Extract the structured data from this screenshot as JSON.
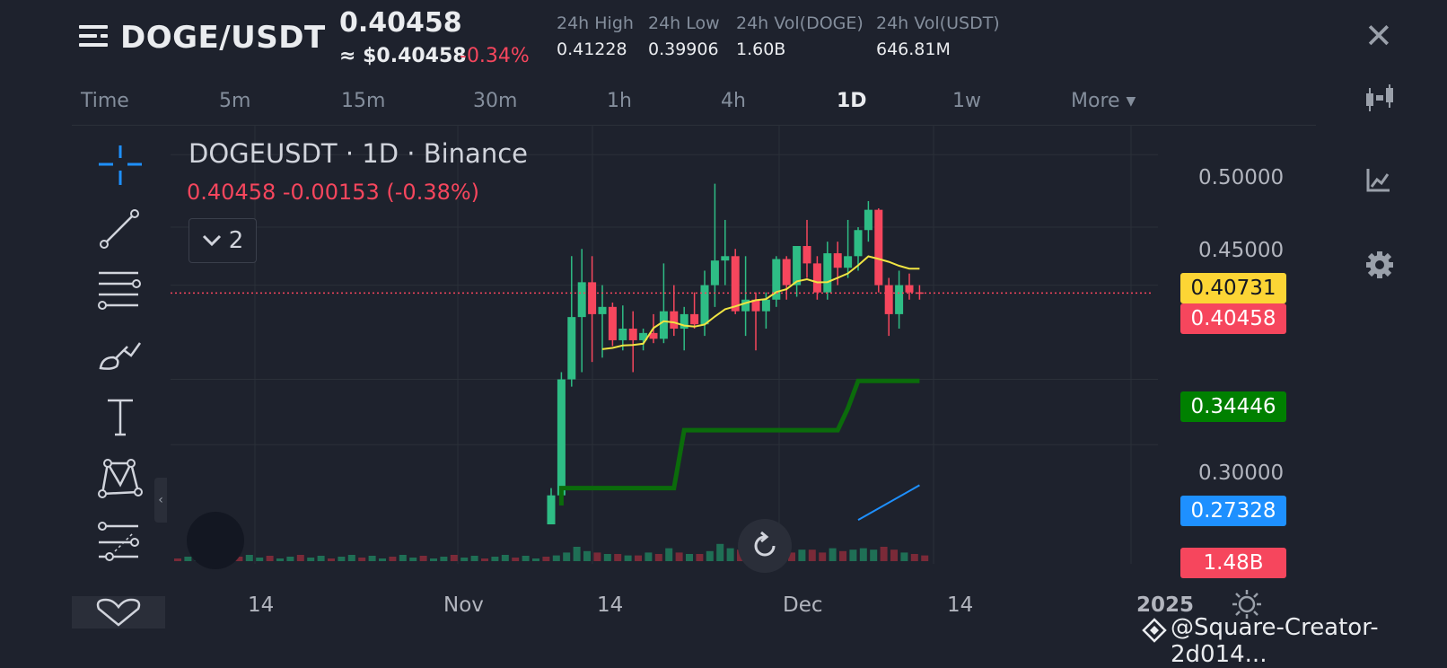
{
  "header": {
    "symbol": "DOGE/USDT",
    "price": "0.40458",
    "price_usd": "≈ $0.40458",
    "change_pct": "-0.34%",
    "stats": [
      {
        "label": "24h High",
        "value": "0.41228"
      },
      {
        "label": "24h Low",
        "value": "0.39906"
      },
      {
        "label": "24h Vol(DOGE)",
        "value": "1.60B"
      },
      {
        "label": "24h Vol(USDT)",
        "value": "646.81M"
      }
    ]
  },
  "timeframes": [
    "Time",
    "5m",
    "15m",
    "30m",
    "1h",
    "4h",
    "1D",
    "1w",
    "More"
  ],
  "active_timeframe": "1D",
  "chart": {
    "title": "DOGEUSDT · 1D · Binance",
    "ohlc_summary": "0.40458  -0.00153 (-0.38%)",
    "indicator_count": "2"
  },
  "price_tags": {
    "ma_yellow": "0.40731",
    "last_price": "0.40458",
    "ma_green": "0.34446",
    "ma_blue": "0.27328",
    "volume": "1.48B"
  },
  "watermark": "@Square-Creator-2d014...",
  "colors": {
    "up": "#2ebd85",
    "down": "#f6465d",
    "ma_yellow": "#f0e442",
    "ma_green": "#0b6b0b",
    "ma_blue": "#1e90ff",
    "tag_yellow": "#fcd535",
    "tag_green": "#008000",
    "tag_blue": "#1e90ff"
  },
  "chart_data": {
    "type": "candlestick",
    "yaxis_ticks": [
      "0.50000",
      "0.45000",
      "0.30000"
    ],
    "xaxis_ticks": [
      "14",
      "Nov",
      "14",
      "Dec",
      "14",
      "2025"
    ],
    "ylim": [
      0.245,
      0.52
    ],
    "candles": [
      {
        "o": 0.245,
        "h": 0.27,
        "l": 0.245,
        "c": 0.265
      },
      {
        "o": 0.265,
        "h": 0.35,
        "l": 0.258,
        "c": 0.345
      },
      {
        "o": 0.345,
        "h": 0.43,
        "l": 0.34,
        "c": 0.388
      },
      {
        "o": 0.388,
        "h": 0.435,
        "l": 0.35,
        "c": 0.412
      },
      {
        "o": 0.412,
        "h": 0.43,
        "l": 0.357,
        "c": 0.39
      },
      {
        "o": 0.39,
        "h": 0.41,
        "l": 0.36,
        "c": 0.395
      },
      {
        "o": 0.395,
        "h": 0.398,
        "l": 0.368,
        "c": 0.372
      },
      {
        "o": 0.372,
        "h": 0.396,
        "l": 0.365,
        "c": 0.38
      },
      {
        "o": 0.38,
        "h": 0.392,
        "l": 0.35,
        "c": 0.372
      },
      {
        "o": 0.372,
        "h": 0.38,
        "l": 0.365,
        "c": 0.377
      },
      {
        "o": 0.377,
        "h": 0.39,
        "l": 0.37,
        "c": 0.373
      },
      {
        "o": 0.373,
        "h": 0.425,
        "l": 0.37,
        "c": 0.392
      },
      {
        "o": 0.392,
        "h": 0.41,
        "l": 0.375,
        "c": 0.38
      },
      {
        "o": 0.38,
        "h": 0.395,
        "l": 0.365,
        "c": 0.39
      },
      {
        "o": 0.39,
        "h": 0.405,
        "l": 0.38,
        "c": 0.383
      },
      {
        "o": 0.383,
        "h": 0.42,
        "l": 0.375,
        "c": 0.41
      },
      {
        "o": 0.41,
        "h": 0.48,
        "l": 0.395,
        "c": 0.427
      },
      {
        "o": 0.427,
        "h": 0.455,
        "l": 0.41,
        "c": 0.43
      },
      {
        "o": 0.43,
        "h": 0.435,
        "l": 0.39,
        "c": 0.392
      },
      {
        "o": 0.392,
        "h": 0.43,
        "l": 0.375,
        "c": 0.4
      },
      {
        "o": 0.4,
        "h": 0.405,
        "l": 0.365,
        "c": 0.392
      },
      {
        "o": 0.392,
        "h": 0.405,
        "l": 0.38,
        "c": 0.4
      },
      {
        "o": 0.4,
        "h": 0.43,
        "l": 0.395,
        "c": 0.428
      },
      {
        "o": 0.428,
        "h": 0.43,
        "l": 0.4,
        "c": 0.41
      },
      {
        "o": 0.41,
        "h": 0.435,
        "l": 0.402,
        "c": 0.437
      },
      {
        "o": 0.437,
        "h": 0.455,
        "l": 0.415,
        "c": 0.425
      },
      {
        "o": 0.425,
        "h": 0.43,
        "l": 0.4,
        "c": 0.405
      },
      {
        "o": 0.405,
        "h": 0.44,
        "l": 0.4,
        "c": 0.432
      },
      {
        "o": 0.432,
        "h": 0.44,
        "l": 0.41,
        "c": 0.422
      },
      {
        "o": 0.422,
        "h": 0.455,
        "l": 0.415,
        "c": 0.43
      },
      {
        "o": 0.43,
        "h": 0.45,
        "l": 0.42,
        "c": 0.448
      },
      {
        "o": 0.448,
        "h": 0.468,
        "l": 0.44,
        "c": 0.462
      },
      {
        "o": 0.462,
        "h": 0.463,
        "l": 0.405,
        "c": 0.41
      },
      {
        "o": 0.41,
        "h": 0.415,
        "l": 0.375,
        "c": 0.39
      },
      {
        "o": 0.39,
        "h": 0.42,
        "l": 0.38,
        "c": 0.41
      },
      {
        "o": 0.41,
        "h": 0.418,
        "l": 0.4,
        "c": 0.405
      },
      {
        "o": 0.405,
        "h": 0.41,
        "l": 0.4,
        "c": 0.4046
      }
    ],
    "volumes": [
      4,
      6,
      10,
      7,
      6,
      5,
      5,
      4,
      4,
      6,
      5,
      9,
      6,
      5,
      5,
      7,
      12,
      9,
      8,
      6,
      5,
      5,
      7,
      6,
      8,
      8,
      6,
      9,
      7,
      8,
      9,
      8,
      10,
      8,
      6,
      5,
      4
    ]
  }
}
